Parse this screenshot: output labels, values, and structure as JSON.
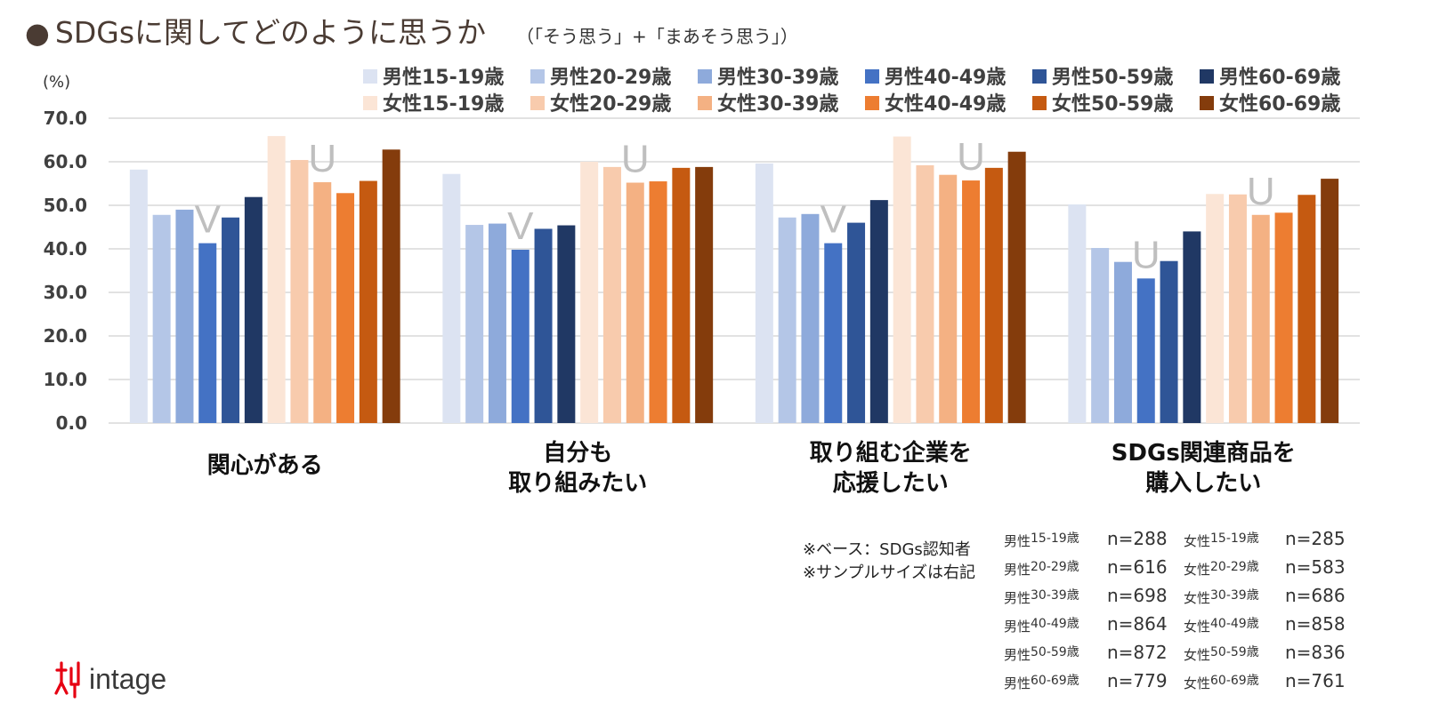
{
  "title": {
    "bullet": "●",
    "main": "SDGsに関してどのように思うか",
    "sub": "（「そう思う」+「まあそう思う」）"
  },
  "chart_data": {
    "type": "bar",
    "ylabel": "(%)",
    "ylim": [
      0,
      70
    ],
    "yticks": [
      "70.0",
      "60.0",
      "50.0",
      "40.0",
      "30.0",
      "20.0",
      "10.0",
      "0.0"
    ],
    "categories": [
      [
        "関心がある"
      ],
      [
        "自分も",
        "取り組みたい"
      ],
      [
        "取り組む企業を",
        "応援したい"
      ],
      [
        "SDGs関連商品を",
        "購入したい"
      ]
    ],
    "series": [
      {
        "name": "男性15-19歳",
        "color": "#dce3f2",
        "values": [
          58.2,
          57.2,
          59.6,
          50.2
        ]
      },
      {
        "name": "男性20-29歳",
        "color": "#b4c6e7",
        "values": [
          47.8,
          45.5,
          47.2,
          40.2
        ]
      },
      {
        "name": "男性30-39歳",
        "color": "#8eaadb",
        "values": [
          49.0,
          45.8,
          48.0,
          37.0
        ]
      },
      {
        "name": "男性40-49歳",
        "color": "#4472c4",
        "values": [
          41.3,
          39.8,
          41.3,
          33.2
        ]
      },
      {
        "name": "男性50-59歳",
        "color": "#2f5597",
        "values": [
          47.2,
          44.6,
          46.0,
          37.2
        ]
      },
      {
        "name": "男性60-69歳",
        "color": "#203864",
        "values": [
          51.9,
          45.4,
          51.2,
          44.0
        ]
      },
      {
        "name": "女性15-19歳",
        "color": "#fbe5d6",
        "values": [
          65.9,
          60.0,
          65.8,
          52.6
        ]
      },
      {
        "name": "女性20-29歳",
        "color": "#f8cbad",
        "values": [
          60.4,
          58.8,
          59.2,
          52.5
        ]
      },
      {
        "name": "女性30-39歳",
        "color": "#f4b183",
        "values": [
          55.3,
          55.2,
          57.0,
          47.8
        ]
      },
      {
        "name": "女性40-49歳",
        "color": "#ed7d31",
        "values": [
          52.8,
          55.5,
          55.7,
          48.3
        ]
      },
      {
        "name": "女性50-59歳",
        "color": "#c55a11",
        "values": [
          55.6,
          58.6,
          58.6,
          52.4
        ]
      },
      {
        "name": "女性60-69歳",
        "color": "#843c0c",
        "values": [
          62.8,
          58.8,
          62.3,
          56.1
        ]
      }
    ],
    "annotations": [
      {
        "text": "V",
        "group": 0,
        "bar": 3
      },
      {
        "text": "U",
        "group": 0,
        "bar": 8
      },
      {
        "text": "V",
        "group": 1,
        "bar": 3
      },
      {
        "text": "U",
        "group": 1,
        "bar": 8
      },
      {
        "text": "V",
        "group": 2,
        "bar": 3
      },
      {
        "text": "U",
        "group": 2,
        "bar": 9
      },
      {
        "text": "U",
        "group": 3,
        "bar": 3
      },
      {
        "text": "U",
        "group": 3,
        "bar": 8
      }
    ],
    "annotation_color": "#bfbfbf",
    "grid_color": "#d9d9d9"
  },
  "notes": [
    "※ベース：SDGs認知者",
    "※サンプルサイズは右記"
  ],
  "samples": [
    {
      "gender": "男性",
      "age": "15-19歳",
      "n": "n=288"
    },
    {
      "gender": "男性",
      "age": "20-29歳",
      "n": "n=616"
    },
    {
      "gender": "男性",
      "age": "30-39歳",
      "n": "n=698"
    },
    {
      "gender": "男性",
      "age": "40-49歳",
      "n": "n=864"
    },
    {
      "gender": "男性",
      "age": "50-59歳",
      "n": "n=872"
    },
    {
      "gender": "男性",
      "age": "60-69歳",
      "n": "n=779"
    },
    {
      "gender": "女性",
      "age": "15-19歳",
      "n": "n=285"
    },
    {
      "gender": "女性",
      "age": "20-29歳",
      "n": "n=583"
    },
    {
      "gender": "女性",
      "age": "30-39歳",
      "n": "n=686"
    },
    {
      "gender": "女性",
      "age": "40-49歳",
      "n": "n=858"
    },
    {
      "gender": "女性",
      "age": "50-59歳",
      "n": "n=836"
    },
    {
      "gender": "女性",
      "age": "60-69歳",
      "n": "n=761"
    }
  ],
  "logo": {
    "text": "intage",
    "color": "#e60012"
  }
}
